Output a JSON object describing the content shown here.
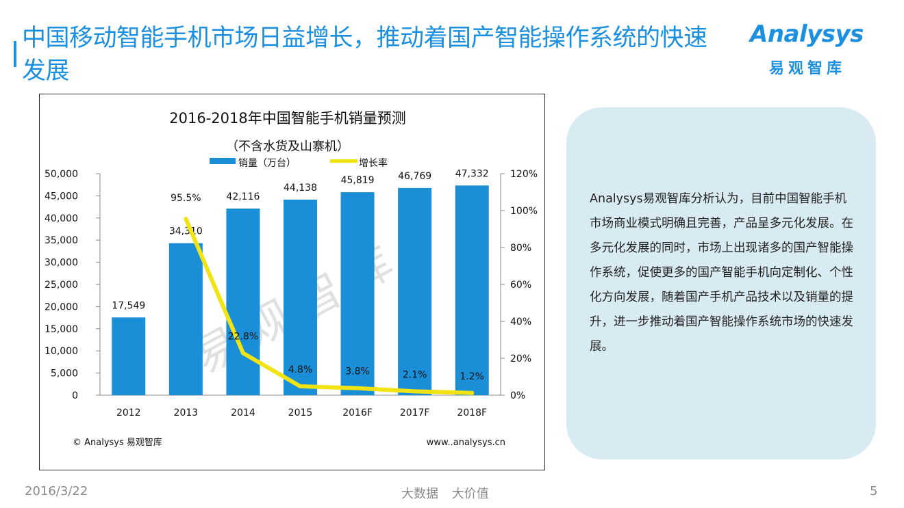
{
  "header": {
    "title": "中国移动智能手机市场日益增长，推动着国产智能操作系统的快速发展"
  },
  "logo": {
    "wordmark": "Analysys",
    "subtitle": "易观智库"
  },
  "chart_data": {
    "type": "bar",
    "title": "2016-2018年中国智能手机销量预测",
    "subtitle": "（不含水货及山寨机）",
    "categories": [
      "2012",
      "2013",
      "2014",
      "2015",
      "2016F",
      "2017F",
      "2018F"
    ],
    "series": [
      {
        "name": "销量（万台）",
        "kind": "bar",
        "axis": "left",
        "color": "#1a8fd8",
        "values": [
          17549,
          34310,
          42116,
          44138,
          45819,
          46769,
          47332
        ],
        "labels": [
          "17,549",
          "34,310",
          "42,116",
          "44,138",
          "45,819",
          "46,769",
          "47,332"
        ]
      },
      {
        "name": "增长率",
        "kind": "line",
        "axis": "right",
        "color": "#f2e313",
        "values": [
          null,
          95.5,
          22.8,
          4.8,
          3.8,
          2.1,
          1.2
        ],
        "labels": [
          null,
          "95.5%",
          "22.8%",
          "4.8%",
          "3.8%",
          "2.1%",
          "1.2%"
        ]
      }
    ],
    "ylim": [
      0,
      50000
    ],
    "y_ticks": [
      "0",
      "5,000",
      "10,000",
      "15,000",
      "20,000",
      "25,000",
      "30,000",
      "35,000",
      "40,000",
      "45,000",
      "50,000"
    ],
    "y2lim": [
      0,
      120
    ],
    "y2_ticks": [
      "0%",
      "20%",
      "40%",
      "60%",
      "80%",
      "100%",
      "120%"
    ],
    "grid": false,
    "legend_position": "top",
    "watermark": "易观智库",
    "source_left": "© Analysys 易观智库",
    "source_right": "www..analysys.cn"
  },
  "note": {
    "text": "Analysys易观智库分析认为，目前中国智能手机市场商业模式明确且完善，产品呈多元化发展。在多元化发展的同时，市场上出现诸多的国产智能操作系统，促使更多的国产智能手机向定制化、个性化方向发展，随着国产手机产品技术以及销量的提升，进一步推动着国产智能操作系统市场的快速发展。"
  },
  "footer": {
    "date": "2016/3/22",
    "slogan": "大数据 大价值",
    "page": "5"
  }
}
